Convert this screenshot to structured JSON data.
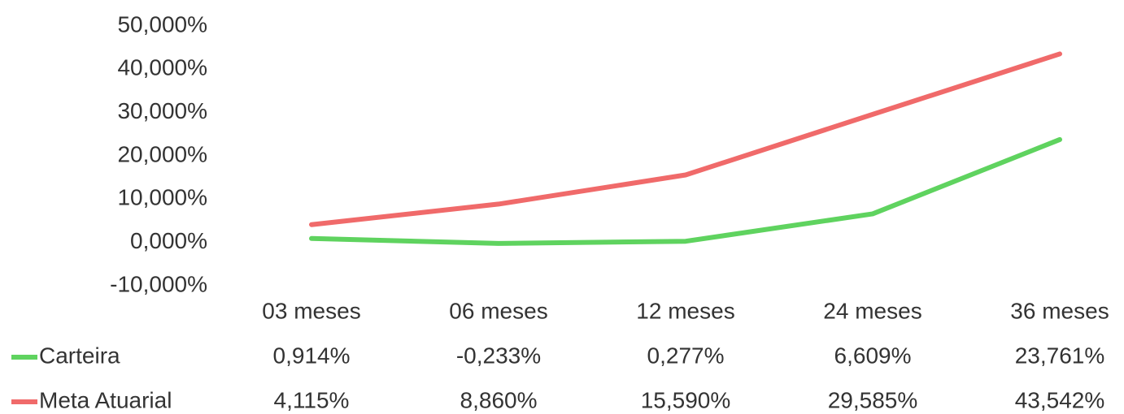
{
  "chart_data": {
    "type": "line",
    "categories": [
      "03 meses",
      "06 meses",
      "12 meses",
      "24 meses",
      "36 meses"
    ],
    "series": [
      {
        "name": "Carteira",
        "color": "#5fd35f",
        "values": [
          0.914,
          -0.233,
          0.277,
          6.609,
          23.761
        ],
        "value_labels": [
          "0,914%",
          "-0,233%",
          "0,277%",
          "6,609%",
          "23,761%"
        ]
      },
      {
        "name": "Meta Atuarial",
        "color": "#f06a6a",
        "values": [
          4.115,
          8.86,
          15.59,
          29.585,
          43.542
        ],
        "value_labels": [
          "4,115%",
          "8,860%",
          "15,590%",
          "29,585%",
          "43,542%"
        ]
      }
    ],
    "ylim": [
      -10,
      50
    ],
    "yticks": [
      {
        "value": -10,
        "label": "-10,000%"
      },
      {
        "value": 0,
        "label": "0,000%"
      },
      {
        "value": 10,
        "label": "10,000%"
      },
      {
        "value": 20,
        "label": "20,000%"
      },
      {
        "value": 30,
        "label": "30,000%"
      },
      {
        "value": 40,
        "label": "40,000%"
      },
      {
        "value": 50,
        "label": "50,000%"
      }
    ],
    "grid": false
  }
}
